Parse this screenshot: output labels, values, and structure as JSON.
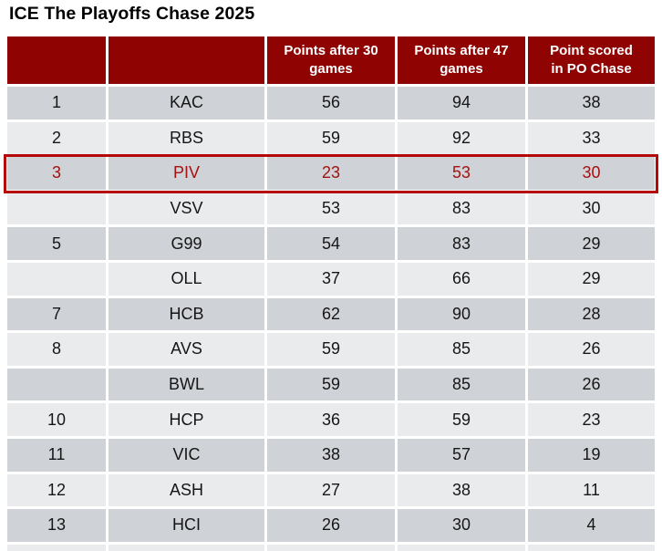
{
  "title": "ICE The Playoffs Chase 2025",
  "colors": {
    "header_bg": "#900303",
    "row_dark": "#CFD2D6",
    "row_light": "#E9EBED",
    "highlight_border": "#B40A0A",
    "highlight_text": "#A21212",
    "header_text": "#ffffff",
    "body_text": "#161616"
  },
  "chart_data": {
    "type": "table",
    "title": "ICE The Playoffs Chase 2025",
    "columns": [
      "",
      "",
      "Points after 30 games",
      "Points after 47 games",
      "Point scored in PO Chase"
    ],
    "header_display": [
      "",
      "",
      "Points after 30\ngames",
      "Points after 47\ngames",
      "Point scored\nin PO Chase"
    ],
    "highlighted_team": "PIV",
    "rows": [
      {
        "rank": "1",
        "team": "KAC",
        "p30": "56",
        "p47": "94",
        "po": "38",
        "highlight": false
      },
      {
        "rank": "2",
        "team": "RBS",
        "p30": "59",
        "p47": "92",
        "po": "33",
        "highlight": false
      },
      {
        "rank": "3",
        "team": "PIV",
        "p30": "23",
        "p47": "53",
        "po": "30",
        "highlight": true
      },
      {
        "rank": "",
        "team": "VSV",
        "p30": "53",
        "p47": "83",
        "po": "30",
        "highlight": false
      },
      {
        "rank": "5",
        "team": "G99",
        "p30": "54",
        "p47": "83",
        "po": "29",
        "highlight": false
      },
      {
        "rank": "",
        "team": "OLL",
        "p30": "37",
        "p47": "66",
        "po": "29",
        "highlight": false
      },
      {
        "rank": "7",
        "team": "HCB",
        "p30": "62",
        "p47": "90",
        "po": "28",
        "highlight": false
      },
      {
        "rank": "8",
        "team": "AVS",
        "p30": "59",
        "p47": "85",
        "po": "26",
        "highlight": false
      },
      {
        "rank": "",
        "team": "BWL",
        "p30": "59",
        "p47": "85",
        "po": "26",
        "highlight": false
      },
      {
        "rank": "10",
        "team": "HCP",
        "p30": "36",
        "p47": "59",
        "po": "23",
        "highlight": false
      },
      {
        "rank": "11",
        "team": "VIC",
        "p30": "38",
        "p47": "57",
        "po": "19",
        "highlight": false
      },
      {
        "rank": "12",
        "team": "ASH",
        "p30": "27",
        "p47": "38",
        "po": "11",
        "highlight": false
      },
      {
        "rank": "13",
        "team": "HCI",
        "p30": "26",
        "p47": "30",
        "po": "4",
        "highlight": false
      }
    ]
  }
}
